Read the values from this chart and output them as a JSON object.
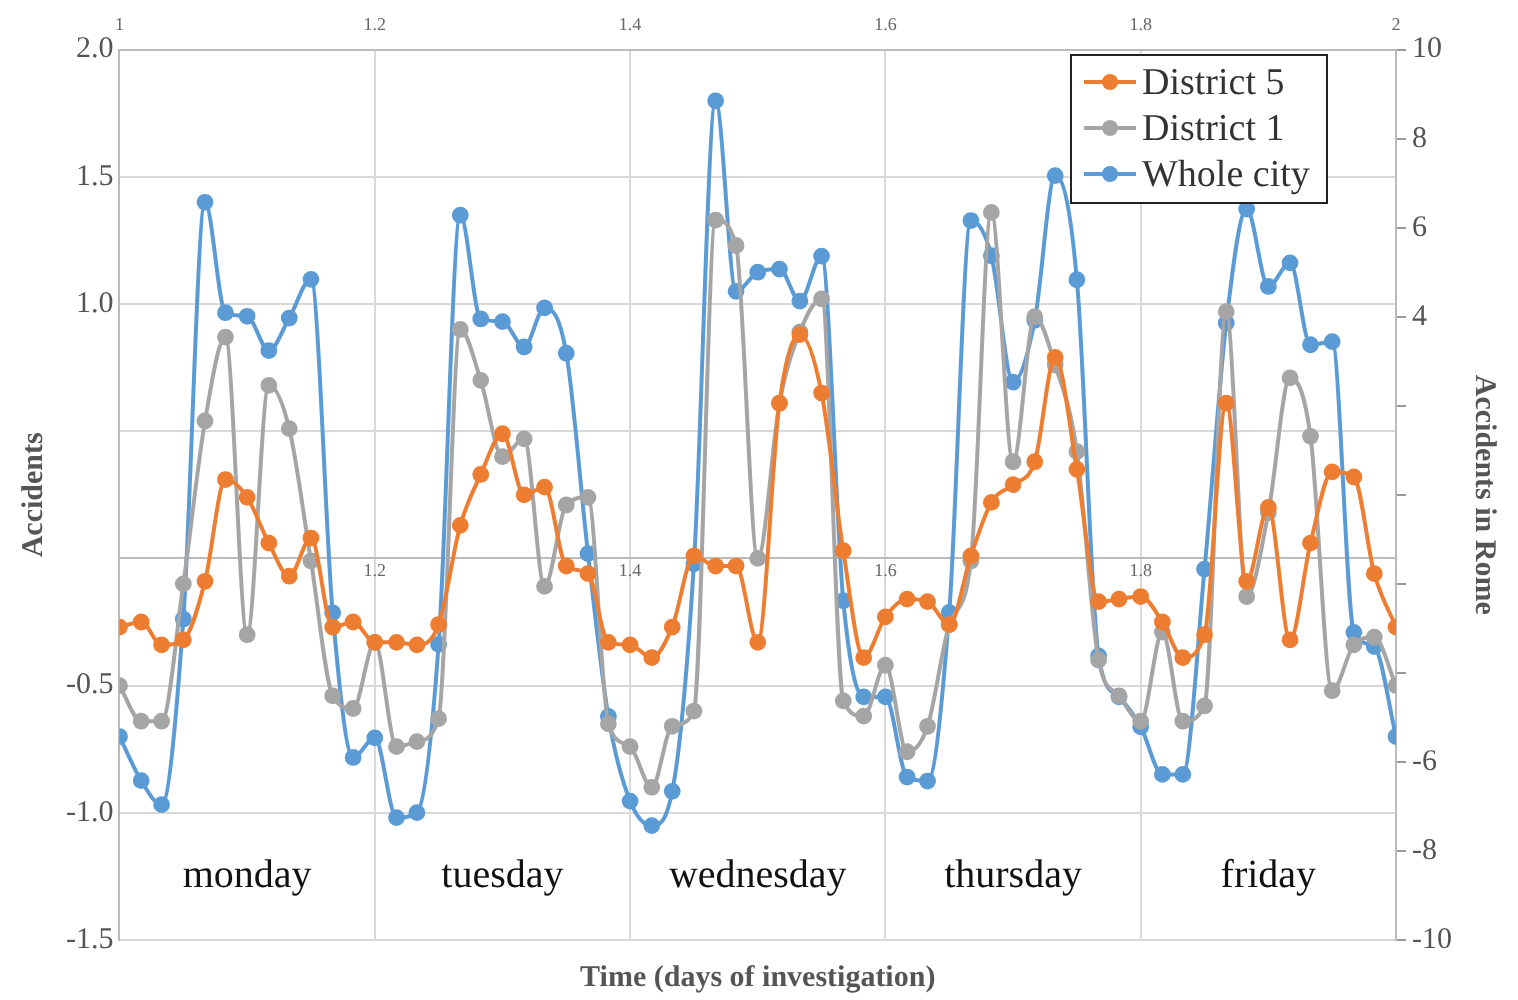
{
  "chart_data": {
    "type": "line",
    "xlabel": "Time (days of investigation)",
    "ylabel": "Accidents",
    "y2label": "Accidents in Rome",
    "x": [
      1,
      1.017,
      1.033,
      1.05,
      1.067,
      1.083,
      1.1,
      1.117,
      1.133,
      1.15,
      1.167,
      1.183,
      1.2,
      1.217,
      1.233,
      1.25,
      1.267,
      1.283,
      1.3,
      1.317,
      1.333,
      1.35,
      1.367,
      1.383,
      1.4,
      1.417,
      1.433,
      1.45,
      1.467,
      1.483,
      1.5,
      1.517,
      1.533,
      1.55,
      1.567,
      1.583,
      1.6,
      1.617,
      1.633,
      1.65,
      1.667,
      1.683,
      1.7,
      1.717,
      1.733,
      1.75,
      1.767,
      1.783,
      1.8,
      1.817,
      1.833,
      1.85,
      1.867,
      1.883,
      1.9,
      1.917,
      1.933,
      1.95,
      1.967,
      1.983,
      2
    ],
    "series": [
      {
        "name": "District 5",
        "color": "#ed7d31",
        "values": [
          -0.27,
          -0.25,
          -0.34,
          -0.32,
          -0.09,
          0.31,
          0.24,
          0.06,
          -0.07,
          0.08,
          -0.27,
          -0.25,
          -0.33,
          -0.33,
          -0.34,
          -0.26,
          0.13,
          0.33,
          0.49,
          0.25,
          0.28,
          -0.03,
          -0.06,
          -0.33,
          -0.34,
          -0.39,
          -0.27,
          0.01,
          -0.03,
          -0.03,
          -0.33,
          0.61,
          0.88,
          0.65,
          0.03,
          -0.39,
          -0.23,
          -0.16,
          -0.17,
          -0.26,
          0.01,
          0.22,
          0.29,
          0.38,
          0.79,
          0.35,
          -0.17,
          -0.16,
          -0.15,
          -0.25,
          -0.39,
          -0.3,
          0.61,
          -0.09,
          0.2,
          -0.32,
          0.06,
          0.34,
          0.32,
          -0.06,
          -0.27
        ]
      },
      {
        "name": "District 1",
        "color": "#a5a5a5",
        "values": [
          -0.5,
          -0.64,
          -0.64,
          -0.1,
          0.54,
          0.87,
          -0.3,
          0.68,
          0.51,
          -0.01,
          -0.54,
          -0.59,
          -0.33,
          -0.74,
          -0.72,
          -0.63,
          0.9,
          0.7,
          0.4,
          0.47,
          -0.11,
          0.21,
          0.24,
          -0.65,
          -0.74,
          -0.9,
          -0.66,
          -0.6,
          1.33,
          1.23,
          0,
          0.61,
          0.89,
          1.02,
          -0.56,
          -0.62,
          -0.42,
          -0.76,
          -0.66,
          -0.26,
          -0.01,
          1.36,
          0.38,
          0.95,
          0.76,
          0.42,
          -0.4,
          -0.54,
          -0.64,
          -0.29,
          -0.64,
          -0.58,
          0.97,
          -0.15,
          0.18,
          0.71,
          0.48,
          -0.52,
          -0.34,
          -0.31,
          -0.5
        ]
      },
      {
        "name": "Whole city",
        "color": "#5b9bd5",
        "axis": "y2",
        "values": [
          -5.43,
          -6.42,
          -6.96,
          -2.79,
          6.57,
          4.09,
          4.01,
          3.24,
          3.97,
          4.84,
          -2.65,
          -5.9,
          -5.46,
          -7.25,
          -7.14,
          -3.36,
          6.28,
          3.95,
          3.89,
          3.32,
          4.2,
          3.18,
          -1.32,
          -4.98,
          -6.88,
          -7.43,
          -6.66,
          -1.55,
          8.85,
          4.57,
          5,
          5.07,
          4.35,
          5.36,
          -2.38,
          -4.54,
          -4.54,
          -6.34,
          -6.43,
          -2.64,
          6.16,
          5.37,
          2.53,
          3.92,
          7.17,
          4.83,
          -3.62,
          -4.54,
          -5.21,
          -6.28,
          -6.28,
          -1.67,
          3.86,
          6.42,
          4.68,
          5.21,
          3.37,
          3.44,
          -3.09,
          -3.41,
          -5.43
        ]
      }
    ],
    "xlim": [
      1,
      2
    ],
    "xticks": [
      {
        "value": 1,
        "label": null
      },
      1.2,
      1.4,
      1.6,
      1.8,
      {
        "value": 2,
        "label": null
      }
    ],
    "x2lim": [
      1,
      2
    ],
    "x2ticks": [
      1,
      1.2,
      1.4,
      1.6,
      1.8,
      2
    ],
    "ylim": [
      -1.5,
      2
    ],
    "yticks": [
      {
        "value": -1.5,
        "label": "-1.5"
      },
      {
        "value": -1,
        "label": "-1.0"
      },
      {
        "value": -0.5,
        "label": "-0.5"
      },
      {
        "value": 0,
        "label": null
      },
      {
        "value": 0.5,
        "label": null
      },
      {
        "value": 1,
        "label": "1.0"
      },
      {
        "value": 1.5,
        "label": "1.5"
      },
      {
        "value": 2,
        "label": "2.0"
      }
    ],
    "y2lim": [
      -10,
      10
    ],
    "y2ticks": [
      -10,
      -8,
      -6,
      {
        "value": -4,
        "label": null
      },
      {
        "value": -2,
        "label": null
      },
      {
        "value": 0,
        "label": null
      },
      {
        "value": 2,
        "label": null
      },
      4,
      6,
      8,
      10
    ],
    "annotations": [
      "monday",
      "tuesday",
      "wednesday",
      "thursday",
      "friday"
    ],
    "grid": true,
    "legend": "top right",
    "marker": "circle",
    "line_style": "solid"
  }
}
